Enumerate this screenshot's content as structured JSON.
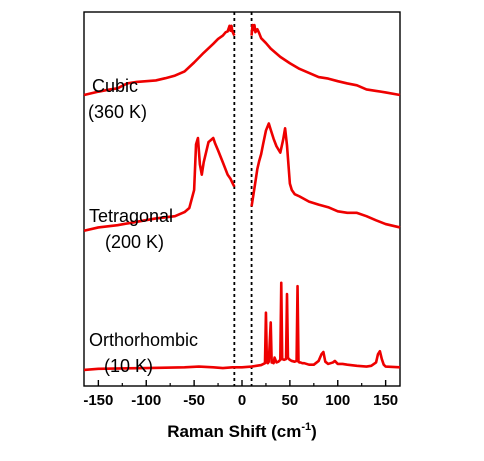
{
  "chart_data": {
    "type": "line",
    "xlabel": "Raman Shift (cm",
    "xlabel_sup": "-1",
    "xlabel_close": ")",
    "ylabel": "",
    "xlim": [
      -165,
      165
    ],
    "x_ticks": [
      -150,
      -100,
      -50,
      0,
      50,
      100,
      150
    ],
    "x_tick_labels": [
      "-150",
      "-100",
      "-50",
      "0",
      "50",
      "100",
      "150"
    ],
    "ylim": [
      0,
      100
    ],
    "grid": false,
    "legend": "none",
    "line_color": "#ee0000",
    "laser_cutoff_lines_x": [
      -8,
      10
    ],
    "labels": [
      {
        "lines": [
          "Cubic",
          "(360 K)"
        ]
      },
      {
        "lines": [
          "Tetragonal",
          "(200 K)"
        ]
      },
      {
        "lines": [
          "Orthorhombic",
          "(10 K)"
        ]
      }
    ],
    "series": [
      {
        "name": "Cubic (360 K)",
        "x": [
          -165,
          -150,
          -140,
          -130,
          -120,
          -110,
          -100,
          -90,
          -80,
          -70,
          -60,
          -50,
          -40,
          -30,
          -25,
          -20,
          -17,
          -15,
          -13,
          -12,
          -11,
          -10,
          -8,
          10,
          11,
          12,
          13,
          14,
          16,
          18,
          20,
          25,
          30,
          40,
          50,
          60,
          70,
          80,
          90,
          100,
          110,
          120,
          130,
          140,
          150,
          165
        ],
        "y": [
          77.8,
          78.7,
          79.2,
          79.6,
          80.9,
          81.3,
          81.5,
          81.7,
          82.3,
          83.0,
          84.1,
          86.5,
          89.1,
          91.5,
          92.8,
          93.7,
          94.6,
          94.8,
          96.3,
          95.0,
          96.3,
          94.8,
          93.7,
          93.7,
          96.5,
          95.2,
          96.5,
          94.6,
          95.4,
          94.3,
          93.0,
          91.7,
          90.2,
          88.0,
          86.3,
          84.8,
          83.7,
          82.6,
          82.2,
          81.5,
          80.9,
          80.4,
          79.3,
          78.9,
          78.5,
          77.8
        ]
      },
      {
        "name": "Tetragonal (200 K)",
        "x": [
          -165,
          -150,
          -130,
          -110,
          -90,
          -70,
          -60,
          -55,
          -50,
          -48,
          -46,
          -44,
          -42,
          -40,
          -35,
          -30,
          -28,
          -25,
          -20,
          -15,
          -12,
          -10,
          -8,
          10,
          12,
          14,
          16,
          18,
          20,
          22,
          25,
          28,
          30,
          33,
          36,
          40,
          43,
          45,
          47,
          50,
          52,
          55,
          60,
          70,
          80,
          90,
          100,
          110,
          120,
          130,
          140,
          150,
          165
        ],
        "y": [
          41.5,
          42.4,
          43.0,
          43.9,
          44.8,
          45.4,
          46.5,
          47.6,
          52.4,
          64.6,
          66.3,
          59.3,
          56.5,
          59.8,
          65.2,
          66.3,
          64.8,
          63.0,
          59.8,
          56.5,
          55.4,
          54.3,
          53.3,
          48.0,
          51.3,
          54.6,
          58.0,
          60.2,
          62.0,
          64.6,
          68.3,
          70.2,
          68.5,
          66.1,
          64.1,
          62.4,
          65.9,
          68.9,
          64.3,
          54.1,
          52.4,
          51.3,
          50.7,
          49.3,
          48.5,
          47.8,
          46.7,
          46.3,
          46.3,
          45.4,
          44.3,
          43.3,
          42.4
        ]
      },
      {
        "name": "Orthorhombic (10 K)",
        "x": [
          -165,
          -150,
          -100,
          -60,
          -45,
          -30,
          -20,
          -10,
          -5,
          0,
          10,
          15,
          20,
          24,
          25,
          26,
          27,
          28,
          30,
          31,
          32,
          33,
          34,
          36,
          38,
          40,
          41,
          42,
          44,
          46,
          47,
          48,
          49,
          50,
          52,
          55,
          57,
          58,
          59,
          60,
          61,
          63,
          65,
          70,
          75,
          80,
          83,
          85,
          87,
          90,
          95,
          97,
          100,
          105,
          110,
          120,
          130,
          135,
          140,
          142,
          144,
          146,
          148,
          150,
          165
        ],
        "y": [
          4.3,
          4.6,
          4.8,
          5.0,
          5.2,
          5.0,
          4.8,
          5.0,
          5.0,
          5.0,
          5.2,
          5.4,
          5.6,
          6.1,
          19.6,
          6.3,
          6.1,
          6.5,
          17.0,
          6.3,
          6.3,
          6.1,
          7.6,
          6.3,
          6.5,
          7.0,
          27.6,
          7.2,
          7.0,
          7.2,
          24.6,
          7.6,
          7.2,
          7.0,
          6.7,
          6.5,
          6.7,
          26.7,
          6.5,
          6.3,
          6.3,
          6.1,
          6.1,
          5.7,
          5.7,
          6.7,
          8.5,
          9.1,
          6.5,
          5.9,
          6.3,
          6.7,
          5.9,
          5.9,
          5.7,
          5.4,
          5.2,
          5.4,
          6.3,
          8.5,
          9.3,
          7.2,
          5.7,
          5.2,
          5.0
        ]
      }
    ]
  }
}
